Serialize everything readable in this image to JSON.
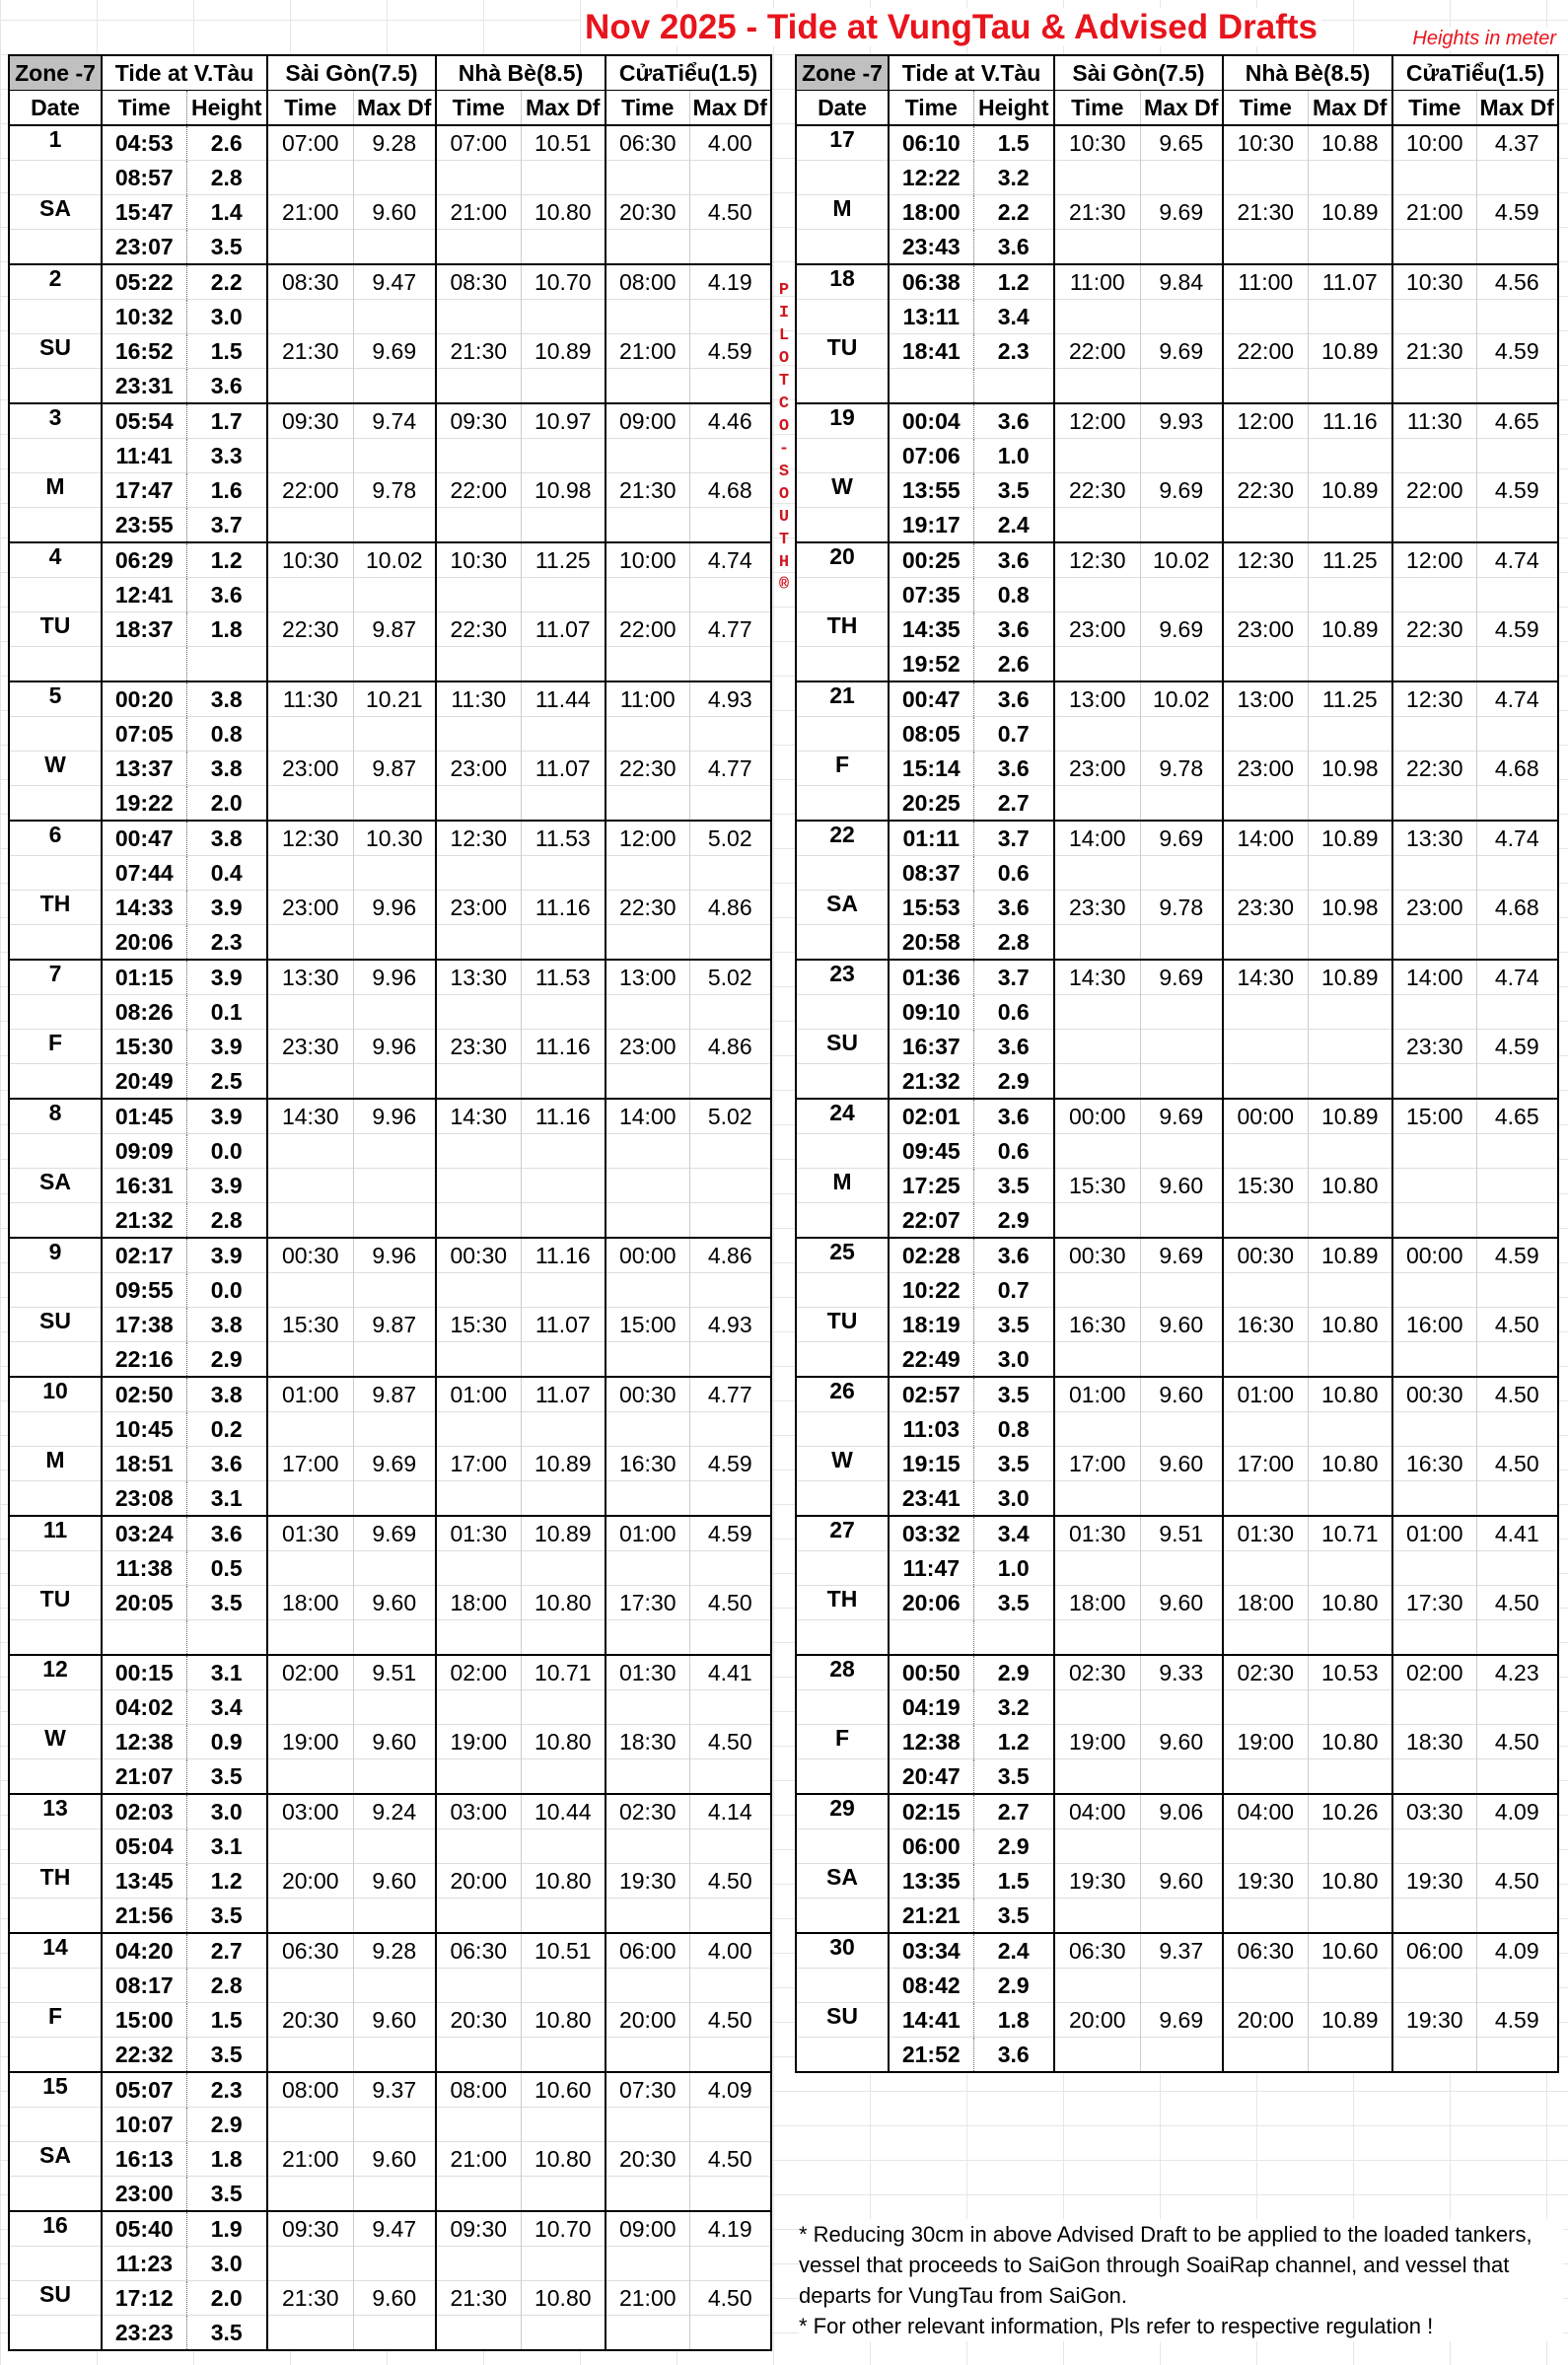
{
  "title": "Nov 2025 - Tide at VungTau & Advised Drafts",
  "units_note": "Heights in meter",
  "side_label": "PILOTCO-SOUTH®",
  "colors": {
    "title": "#e8141c",
    "zone_header_bg": "#c0c0c0"
  },
  "headers": {
    "zone": "Zone -7",
    "tide": "Tide at V.Tàu",
    "saigon": "Sài Gòn(7.5)",
    "nhabe": "Nhà Bè(8.5)",
    "cuatieu": "CửaTiểu(1.5)",
    "date": "Date",
    "time": "Time",
    "height": "Height",
    "maxdf": "Max Df"
  },
  "days": [
    {
      "d": "1",
      "w": "SA",
      "tides": [
        [
          "04:53",
          "2.6"
        ],
        [
          "08:57",
          "2.8"
        ],
        [
          "15:47",
          "1.4"
        ],
        [
          "23:07",
          "3.5"
        ]
      ],
      "dr": [
        [
          "07:00",
          "9.28",
          "07:00",
          "10.51",
          "06:30",
          "4.00"
        ],
        [
          "21:00",
          "9.60",
          "21:00",
          "10.80",
          "20:30",
          "4.50"
        ]
      ]
    },
    {
      "d": "2",
      "w": "SU",
      "tides": [
        [
          "05:22",
          "2.2"
        ],
        [
          "10:32",
          "3.0"
        ],
        [
          "16:52",
          "1.5"
        ],
        [
          "23:31",
          "3.6"
        ]
      ],
      "dr": [
        [
          "08:30",
          "9.47",
          "08:30",
          "10.70",
          "08:00",
          "4.19"
        ],
        [
          "21:30",
          "9.69",
          "21:30",
          "10.89",
          "21:00",
          "4.59"
        ]
      ]
    },
    {
      "d": "3",
      "w": "M",
      "tides": [
        [
          "05:54",
          "1.7"
        ],
        [
          "11:41",
          "3.3"
        ],
        [
          "17:47",
          "1.6"
        ],
        [
          "23:55",
          "3.7"
        ]
      ],
      "dr": [
        [
          "09:30",
          "9.74",
          "09:30",
          "10.97",
          "09:00",
          "4.46"
        ],
        [
          "22:00",
          "9.78",
          "22:00",
          "10.98",
          "21:30",
          "4.68"
        ]
      ]
    },
    {
      "d": "4",
      "w": "TU",
      "tides": [
        [
          "06:29",
          "1.2"
        ],
        [
          "12:41",
          "3.6"
        ],
        [
          "18:37",
          "1.8"
        ],
        [
          "",
          ""
        ]
      ],
      "dr": [
        [
          "10:30",
          "10.02",
          "10:30",
          "11.25",
          "10:00",
          "4.74"
        ],
        [
          "22:30",
          "9.87",
          "22:30",
          "11.07",
          "22:00",
          "4.77"
        ]
      ]
    },
    {
      "d": "5",
      "w": "W",
      "tides": [
        [
          "00:20",
          "3.8"
        ],
        [
          "07:05",
          "0.8"
        ],
        [
          "13:37",
          "3.8"
        ],
        [
          "19:22",
          "2.0"
        ]
      ],
      "dr": [
        [
          "11:30",
          "10.21",
          "11:30",
          "11.44",
          "11:00",
          "4.93"
        ],
        [
          "23:00",
          "9.87",
          "23:00",
          "11.07",
          "22:30",
          "4.77"
        ]
      ]
    },
    {
      "d": "6",
      "w": "TH",
      "tides": [
        [
          "00:47",
          "3.8"
        ],
        [
          "07:44",
          "0.4"
        ],
        [
          "14:33",
          "3.9"
        ],
        [
          "20:06",
          "2.3"
        ]
      ],
      "dr": [
        [
          "12:30",
          "10.30",
          "12:30",
          "11.53",
          "12:00",
          "5.02"
        ],
        [
          "23:00",
          "9.96",
          "23:00",
          "11.16",
          "22:30",
          "4.86"
        ]
      ]
    },
    {
      "d": "7",
      "w": "F",
      "tides": [
        [
          "01:15",
          "3.9"
        ],
        [
          "08:26",
          "0.1"
        ],
        [
          "15:30",
          "3.9"
        ],
        [
          "20:49",
          "2.5"
        ]
      ],
      "dr": [
        [
          "13:30",
          "9.96",
          "13:30",
          "11.53",
          "13:00",
          "5.02"
        ],
        [
          "23:30",
          "9.96",
          "23:30",
          "11.16",
          "23:00",
          "4.86"
        ]
      ]
    },
    {
      "d": "8",
      "w": "SA",
      "tides": [
        [
          "01:45",
          "3.9"
        ],
        [
          "09:09",
          "0.0"
        ],
        [
          "16:31",
          "3.9"
        ],
        [
          "21:32",
          "2.8"
        ]
      ],
      "dr": [
        [
          "14:30",
          "9.96",
          "14:30",
          "11.16",
          "14:00",
          "5.02"
        ],
        [
          "",
          "",
          "",
          "",
          "",
          ""
        ]
      ]
    },
    {
      "d": "9",
      "w": "SU",
      "tides": [
        [
          "02:17",
          "3.9"
        ],
        [
          "09:55",
          "0.0"
        ],
        [
          "17:38",
          "3.8"
        ],
        [
          "22:16",
          "2.9"
        ]
      ],
      "dr": [
        [
          "00:30",
          "9.96",
          "00:30",
          "11.16",
          "00:00",
          "4.86"
        ],
        [
          "15:30",
          "9.87",
          "15:30",
          "11.07",
          "15:00",
          "4.93"
        ]
      ]
    },
    {
      "d": "10",
      "w": "M",
      "tides": [
        [
          "02:50",
          "3.8"
        ],
        [
          "10:45",
          "0.2"
        ],
        [
          "18:51",
          "3.6"
        ],
        [
          "23:08",
          "3.1"
        ]
      ],
      "dr": [
        [
          "01:00",
          "9.87",
          "01:00",
          "11.07",
          "00:30",
          "4.77"
        ],
        [
          "17:00",
          "9.69",
          "17:00",
          "10.89",
          "16:30",
          "4.59"
        ]
      ]
    },
    {
      "d": "11",
      "w": "TU",
      "tides": [
        [
          "03:24",
          "3.6"
        ],
        [
          "11:38",
          "0.5"
        ],
        [
          "20:05",
          "3.5"
        ],
        [
          "",
          ""
        ]
      ],
      "dr": [
        [
          "01:30",
          "9.69",
          "01:30",
          "10.89",
          "01:00",
          "4.59"
        ],
        [
          "18:00",
          "9.60",
          "18:00",
          "10.80",
          "17:30",
          "4.50"
        ]
      ]
    },
    {
      "d": "12",
      "w": "W",
      "tides": [
        [
          "00:15",
          "3.1"
        ],
        [
          "04:02",
          "3.4"
        ],
        [
          "12:38",
          "0.9"
        ],
        [
          "21:07",
          "3.5"
        ]
      ],
      "dr": [
        [
          "02:00",
          "9.51",
          "02:00",
          "10.71",
          "01:30",
          "4.41"
        ],
        [
          "19:00",
          "9.60",
          "19:00",
          "10.80",
          "18:30",
          "4.50"
        ]
      ]
    },
    {
      "d": "13",
      "w": "TH",
      "tides": [
        [
          "02:03",
          "3.0"
        ],
        [
          "05:04",
          "3.1"
        ],
        [
          "13:45",
          "1.2"
        ],
        [
          "21:56",
          "3.5"
        ]
      ],
      "dr": [
        [
          "03:00",
          "9.24",
          "03:00",
          "10.44",
          "02:30",
          "4.14"
        ],
        [
          "20:00",
          "9.60",
          "20:00",
          "10.80",
          "19:30",
          "4.50"
        ]
      ]
    },
    {
      "d": "14",
      "w": "F",
      "tides": [
        [
          "04:20",
          "2.7"
        ],
        [
          "08:17",
          "2.8"
        ],
        [
          "15:00",
          "1.5"
        ],
        [
          "22:32",
          "3.5"
        ]
      ],
      "dr": [
        [
          "06:30",
          "9.28",
          "06:30",
          "10.51",
          "06:00",
          "4.00"
        ],
        [
          "20:30",
          "9.60",
          "20:30",
          "10.80",
          "20:00",
          "4.50"
        ]
      ]
    },
    {
      "d": "15",
      "w": "SA",
      "tides": [
        [
          "05:07",
          "2.3"
        ],
        [
          "10:07",
          "2.9"
        ],
        [
          "16:13",
          "1.8"
        ],
        [
          "23:00",
          "3.5"
        ]
      ],
      "dr": [
        [
          "08:00",
          "9.37",
          "08:00",
          "10.60",
          "07:30",
          "4.09"
        ],
        [
          "21:00",
          "9.60",
          "21:00",
          "10.80",
          "20:30",
          "4.50"
        ]
      ]
    },
    {
      "d": "16",
      "w": "SU",
      "tides": [
        [
          "05:40",
          "1.9"
        ],
        [
          "11:23",
          "3.0"
        ],
        [
          "17:12",
          "2.0"
        ],
        [
          "23:23",
          "3.5"
        ]
      ],
      "dr": [
        [
          "09:30",
          "9.47",
          "09:30",
          "10.70",
          "09:00",
          "4.19"
        ],
        [
          "21:30",
          "9.60",
          "21:30",
          "10.80",
          "21:00",
          "4.50"
        ]
      ]
    },
    {
      "d": "17",
      "w": "M",
      "tides": [
        [
          "06:10",
          "1.5"
        ],
        [
          "12:22",
          "3.2"
        ],
        [
          "18:00",
          "2.2"
        ],
        [
          "23:43",
          "3.6"
        ]
      ],
      "dr": [
        [
          "10:30",
          "9.65",
          "10:30",
          "10.88",
          "10:00",
          "4.37"
        ],
        [
          "21:30",
          "9.69",
          "21:30",
          "10.89",
          "21:00",
          "4.59"
        ]
      ]
    },
    {
      "d": "18",
      "w": "TU",
      "tides": [
        [
          "06:38",
          "1.2"
        ],
        [
          "13:11",
          "3.4"
        ],
        [
          "18:41",
          "2.3"
        ],
        [
          "",
          ""
        ]
      ],
      "dr": [
        [
          "11:00",
          "9.84",
          "11:00",
          "11.07",
          "10:30",
          "4.56"
        ],
        [
          "22:00",
          "9.69",
          "22:00",
          "10.89",
          "21:30",
          "4.59"
        ]
      ]
    },
    {
      "d": "19",
      "w": "W",
      "tides": [
        [
          "00:04",
          "3.6"
        ],
        [
          "07:06",
          "1.0"
        ],
        [
          "13:55",
          "3.5"
        ],
        [
          "19:17",
          "2.4"
        ]
      ],
      "dr": [
        [
          "12:00",
          "9.93",
          "12:00",
          "11.16",
          "11:30",
          "4.65"
        ],
        [
          "22:30",
          "9.69",
          "22:30",
          "10.89",
          "22:00",
          "4.59"
        ]
      ]
    },
    {
      "d": "20",
      "w": "TH",
      "tides": [
        [
          "00:25",
          "3.6"
        ],
        [
          "07:35",
          "0.8"
        ],
        [
          "14:35",
          "3.6"
        ],
        [
          "19:52",
          "2.6"
        ]
      ],
      "dr": [
        [
          "12:30",
          "10.02",
          "12:30",
          "11.25",
          "12:00",
          "4.74"
        ],
        [
          "23:00",
          "9.69",
          "23:00",
          "10.89",
          "22:30",
          "4.59"
        ]
      ]
    },
    {
      "d": "21",
      "w": "F",
      "tides": [
        [
          "00:47",
          "3.6"
        ],
        [
          "08:05",
          "0.7"
        ],
        [
          "15:14",
          "3.6"
        ],
        [
          "20:25",
          "2.7"
        ]
      ],
      "dr": [
        [
          "13:00",
          "10.02",
          "13:00",
          "11.25",
          "12:30",
          "4.74"
        ],
        [
          "23:00",
          "9.78",
          "23:00",
          "10.98",
          "22:30",
          "4.68"
        ]
      ]
    },
    {
      "d": "22",
      "w": "SA",
      "tides": [
        [
          "01:11",
          "3.7"
        ],
        [
          "08:37",
          "0.6"
        ],
        [
          "15:53",
          "3.6"
        ],
        [
          "20:58",
          "2.8"
        ]
      ],
      "dr": [
        [
          "14:00",
          "9.69",
          "14:00",
          "10.89",
          "13:30",
          "4.74"
        ],
        [
          "23:30",
          "9.78",
          "23:30",
          "10.98",
          "23:00",
          "4.68"
        ]
      ]
    },
    {
      "d": "23",
      "w": "SU",
      "tides": [
        [
          "01:36",
          "3.7"
        ],
        [
          "09:10",
          "0.6"
        ],
        [
          "16:37",
          "3.6"
        ],
        [
          "21:32",
          "2.9"
        ]
      ],
      "dr": [
        [
          "14:30",
          "9.69",
          "14:30",
          "10.89",
          "14:00",
          "4.74"
        ],
        [
          "",
          "",
          "",
          "",
          "23:30",
          "4.59"
        ]
      ]
    },
    {
      "d": "24",
      "w": "M",
      "tides": [
        [
          "02:01",
          "3.6"
        ],
        [
          "09:45",
          "0.6"
        ],
        [
          "17:25",
          "3.5"
        ],
        [
          "22:07",
          "2.9"
        ]
      ],
      "dr": [
        [
          "00:00",
          "9.69",
          "00:00",
          "10.89",
          "15:00",
          "4.65"
        ],
        [
          "15:30",
          "9.60",
          "15:30",
          "10.80",
          "",
          ""
        ]
      ]
    },
    {
      "d": "25",
      "w": "TU",
      "tides": [
        [
          "02:28",
          "3.6"
        ],
        [
          "10:22",
          "0.7"
        ],
        [
          "18:19",
          "3.5"
        ],
        [
          "22:49",
          "3.0"
        ]
      ],
      "dr": [
        [
          "00:30",
          "9.69",
          "00:30",
          "10.89",
          "00:00",
          "4.59"
        ],
        [
          "16:30",
          "9.60",
          "16:30",
          "10.80",
          "16:00",
          "4.50"
        ]
      ]
    },
    {
      "d": "26",
      "w": "W",
      "tides": [
        [
          "02:57",
          "3.5"
        ],
        [
          "11:03",
          "0.8"
        ],
        [
          "19:15",
          "3.5"
        ],
        [
          "23:41",
          "3.0"
        ]
      ],
      "dr": [
        [
          "01:00",
          "9.60",
          "01:00",
          "10.80",
          "00:30",
          "4.50"
        ],
        [
          "17:00",
          "9.60",
          "17:00",
          "10.80",
          "16:30",
          "4.50"
        ]
      ]
    },
    {
      "d": "27",
      "w": "TH",
      "tides": [
        [
          "03:32",
          "3.4"
        ],
        [
          "11:47",
          "1.0"
        ],
        [
          "20:06",
          "3.5"
        ],
        [
          "",
          ""
        ]
      ],
      "dr": [
        [
          "01:30",
          "9.51",
          "01:30",
          "10.71",
          "01:00",
          "4.41"
        ],
        [
          "18:00",
          "9.60",
          "18:00",
          "10.80",
          "17:30",
          "4.50"
        ]
      ]
    },
    {
      "d": "28",
      "w": "F",
      "tides": [
        [
          "00:50",
          "2.9"
        ],
        [
          "04:19",
          "3.2"
        ],
        [
          "12:38",
          "1.2"
        ],
        [
          "20:47",
          "3.5"
        ]
      ],
      "dr": [
        [
          "02:30",
          "9.33",
          "02:30",
          "10.53",
          "02:00",
          "4.23"
        ],
        [
          "19:00",
          "9.60",
          "19:00",
          "10.80",
          "18:30",
          "4.50"
        ]
      ]
    },
    {
      "d": "29",
      "w": "SA",
      "tides": [
        [
          "02:15",
          "2.7"
        ],
        [
          "06:00",
          "2.9"
        ],
        [
          "13:35",
          "1.5"
        ],
        [
          "21:21",
          "3.5"
        ]
      ],
      "dr": [
        [
          "04:00",
          "9.06",
          "04:00",
          "10.26",
          "03:30",
          "4.09"
        ],
        [
          "19:30",
          "9.60",
          "19:30",
          "10.80",
          "19:30",
          "4.50"
        ]
      ]
    },
    {
      "d": "30",
      "w": "SU",
      "tides": [
        [
          "03:34",
          "2.4"
        ],
        [
          "08:42",
          "2.9"
        ],
        [
          "14:41",
          "1.8"
        ],
        [
          "21:52",
          "3.6"
        ]
      ],
      "dr": [
        [
          "06:30",
          "9.37",
          "06:30",
          "10.60",
          "06:00",
          "4.09"
        ],
        [
          "20:00",
          "9.69",
          "20:00",
          "10.89",
          "19:30",
          "4.59"
        ]
      ]
    }
  ],
  "notes": [
    "* Reducing 30cm in above Advised Draft to be applied to the loaded tankers, vessel that proceeds to SaiGon through SoaiRap channel, and vessel that departs for VungTau from SaiGon.",
    "* For other relevant information, Pls refer to respective regulation !"
  ]
}
